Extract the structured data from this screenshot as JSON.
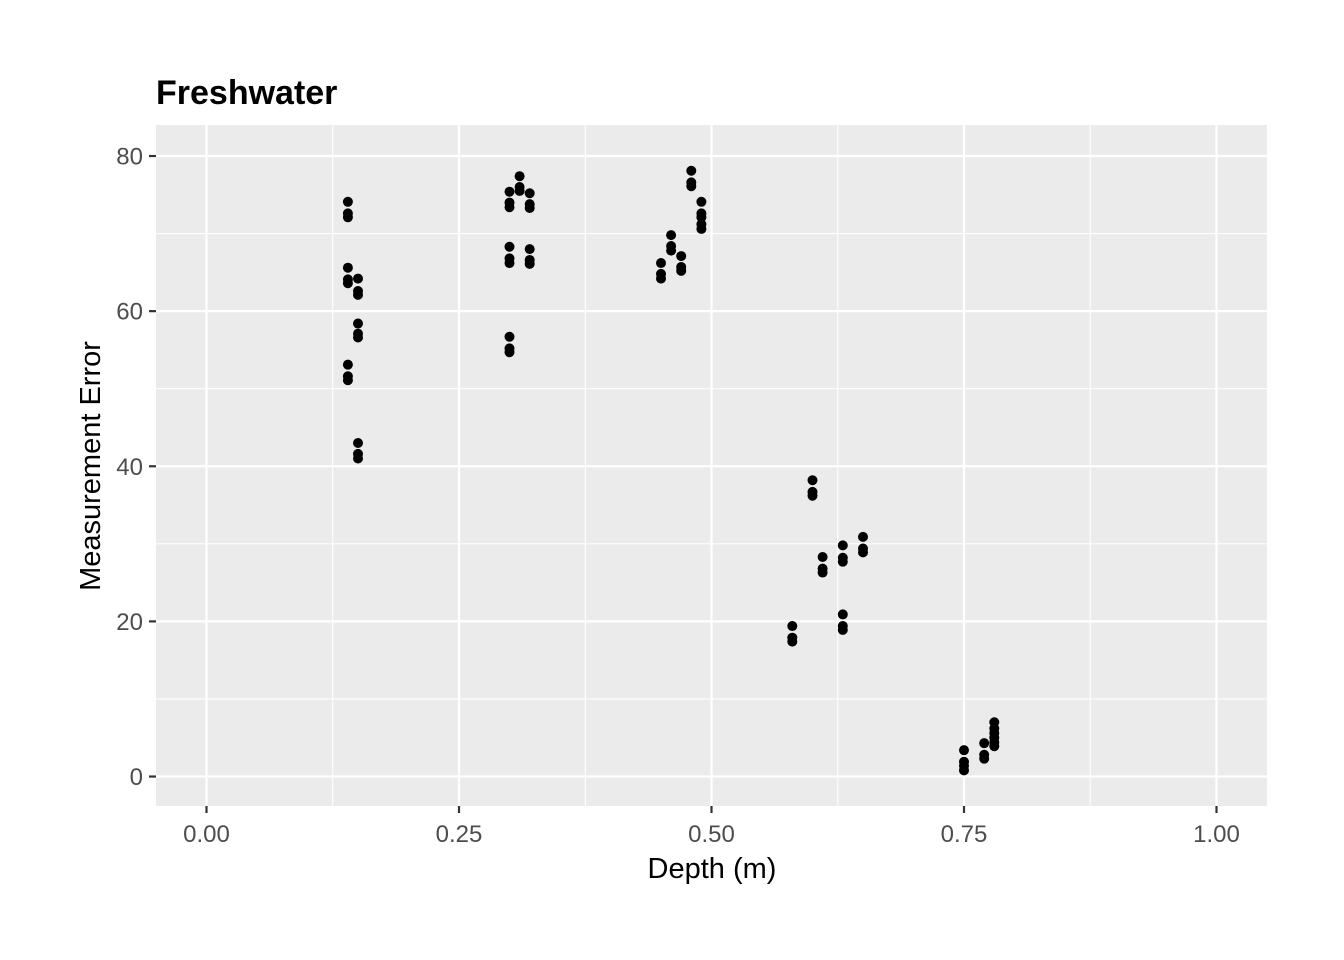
{
  "chart_data": {
    "type": "scatter",
    "title": "Freshwater",
    "xlabel": "Depth (m)",
    "ylabel": "Measurement Error",
    "xlim": [
      -0.05,
      1.05
    ],
    "ylim": [
      -3.8,
      84
    ],
    "x_ticks": [
      0.0,
      0.25,
      0.5,
      0.75,
      1.0
    ],
    "x_tick_labels": [
      "0.00",
      "0.25",
      "0.50",
      "0.75",
      "1.00"
    ],
    "y_ticks": [
      0,
      20,
      40,
      60,
      80
    ],
    "y_tick_labels": [
      "0",
      "20",
      "40",
      "60",
      "80"
    ],
    "grid": true,
    "legend": "none",
    "colors": {
      "panel": "#ebebeb",
      "grid": "#ffffff",
      "point": "#000000"
    },
    "points": [
      [
        0.14,
        74.1
      ],
      [
        0.14,
        72.6
      ],
      [
        0.14,
        72.1
      ],
      [
        0.14,
        65.6
      ],
      [
        0.14,
        64.1
      ],
      [
        0.14,
        63.6
      ],
      [
        0.14,
        53.1
      ],
      [
        0.14,
        51.6
      ],
      [
        0.14,
        51.1
      ],
      [
        0.15,
        64.2
      ],
      [
        0.15,
        62.6
      ],
      [
        0.15,
        62.1
      ],
      [
        0.15,
        58.4
      ],
      [
        0.15,
        57.1
      ],
      [
        0.15,
        56.6
      ],
      [
        0.15,
        43.0
      ],
      [
        0.15,
        41.6
      ],
      [
        0.15,
        41.0
      ],
      [
        0.3,
        75.4
      ],
      [
        0.3,
        74.0
      ],
      [
        0.3,
        73.4
      ],
      [
        0.3,
        68.3
      ],
      [
        0.3,
        66.8
      ],
      [
        0.3,
        66.2
      ],
      [
        0.3,
        56.7
      ],
      [
        0.3,
        55.2
      ],
      [
        0.3,
        54.7
      ],
      [
        0.31,
        77.4
      ],
      [
        0.31,
        76.0
      ],
      [
        0.31,
        75.5
      ],
      [
        0.32,
        75.2
      ],
      [
        0.32,
        73.8
      ],
      [
        0.32,
        73.3
      ],
      [
        0.32,
        68.0
      ],
      [
        0.32,
        66.6
      ],
      [
        0.32,
        66.1
      ],
      [
        0.45,
        66.2
      ],
      [
        0.45,
        64.8
      ],
      [
        0.45,
        64.2
      ],
      [
        0.46,
        69.8
      ],
      [
        0.46,
        68.4
      ],
      [
        0.46,
        67.8
      ],
      [
        0.47,
        67.1
      ],
      [
        0.47,
        65.7
      ],
      [
        0.47,
        65.2
      ],
      [
        0.48,
        78.1
      ],
      [
        0.48,
        76.6
      ],
      [
        0.48,
        76.1
      ],
      [
        0.49,
        74.1
      ],
      [
        0.49,
        72.6
      ],
      [
        0.49,
        72.1
      ],
      [
        0.49,
        71.2
      ],
      [
        0.49,
        70.6
      ],
      [
        0.58,
        19.4
      ],
      [
        0.58,
        17.9
      ],
      [
        0.58,
        17.4
      ],
      [
        0.6,
        38.2
      ],
      [
        0.6,
        36.7
      ],
      [
        0.6,
        36.2
      ],
      [
        0.61,
        28.3
      ],
      [
        0.61,
        26.8
      ],
      [
        0.61,
        26.3
      ],
      [
        0.63,
        29.8
      ],
      [
        0.63,
        28.2
      ],
      [
        0.63,
        27.7
      ],
      [
        0.63,
        20.9
      ],
      [
        0.63,
        19.4
      ],
      [
        0.63,
        18.9
      ],
      [
        0.65,
        30.9
      ],
      [
        0.65,
        29.4
      ],
      [
        0.65,
        28.9
      ],
      [
        0.75,
        3.4
      ],
      [
        0.75,
        1.9
      ],
      [
        0.75,
        1.4
      ],
      [
        0.75,
        0.8
      ],
      [
        0.77,
        4.3
      ],
      [
        0.77,
        2.8
      ],
      [
        0.77,
        2.3
      ],
      [
        0.78,
        7.0
      ],
      [
        0.78,
        6.2
      ],
      [
        0.78,
        5.6
      ],
      [
        0.78,
        5.0
      ],
      [
        0.78,
        4.4
      ],
      [
        0.78,
        3.9
      ]
    ]
  }
}
